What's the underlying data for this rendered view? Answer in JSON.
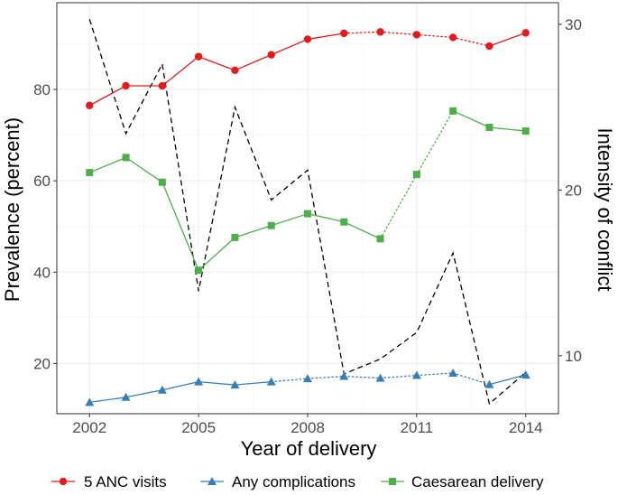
{
  "chart_data": {
    "type": "line",
    "title": "",
    "xlabel": "Year of delivery",
    "ylabel": "Prevalence (percent)",
    "y2label": "Intensity of conflict",
    "x": [
      2002,
      2003,
      2004,
      2005,
      2006,
      2007,
      2008,
      2009,
      2010,
      2011,
      2012,
      2013,
      2014
    ],
    "xlim": [
      2001.1,
      2014.9
    ],
    "ylim": [
      9,
      99
    ],
    "y2lim": [
      6.5,
      31.3
    ],
    "x_ticks": [
      "2002",
      "2005",
      "2008",
      "2011",
      "2014"
    ],
    "y_ticks": [
      "20",
      "40",
      "60",
      "80"
    ],
    "y2_ticks": [
      "10",
      "20",
      "30"
    ],
    "grid": true,
    "legend_position": "bottom",
    "series": [
      {
        "name": "5 ANC visits",
        "color": "#e41a1c",
        "marker": "circle",
        "values": [
          76.5,
          80.8,
          80.8,
          87.2,
          84.2,
          87.6,
          91.0,
          92.3,
          92.6,
          92.0,
          91.4,
          89.5,
          92.4
        ],
        "dotted_from_index": [
          7,
          8,
          9,
          10
        ]
      },
      {
        "name": "Any complications",
        "color": "#377eb8",
        "marker": "triangle",
        "values": [
          11.5,
          12.6,
          14.2,
          16.0,
          15.3,
          16.0,
          16.7,
          17.2,
          16.8,
          17.4,
          17.9,
          15.4,
          17.5
        ],
        "dotted_from_index": [
          5,
          6,
          7,
          8,
          9,
          10
        ]
      },
      {
        "name": "Caesarean delivery",
        "color": "#4daf4a",
        "marker": "square",
        "values": [
          61.8,
          65.1,
          59.7,
          40.4,
          47.6,
          50.2,
          52.8,
          51.0,
          47.3,
          61.4,
          75.3,
          71.7,
          70.9
        ],
        "dotted_from_index": [
          8,
          9
        ]
      }
    ],
    "secondary_series": {
      "name": "Intensity of conflict",
      "color": "#000000",
      "style": "dashed",
      "values": [
        30.3,
        23.4,
        27.6,
        13.9,
        25.0,
        19.4,
        21.2,
        8.9,
        9.8,
        11.4,
        16.2,
        7.1,
        9.0
      ]
    }
  }
}
